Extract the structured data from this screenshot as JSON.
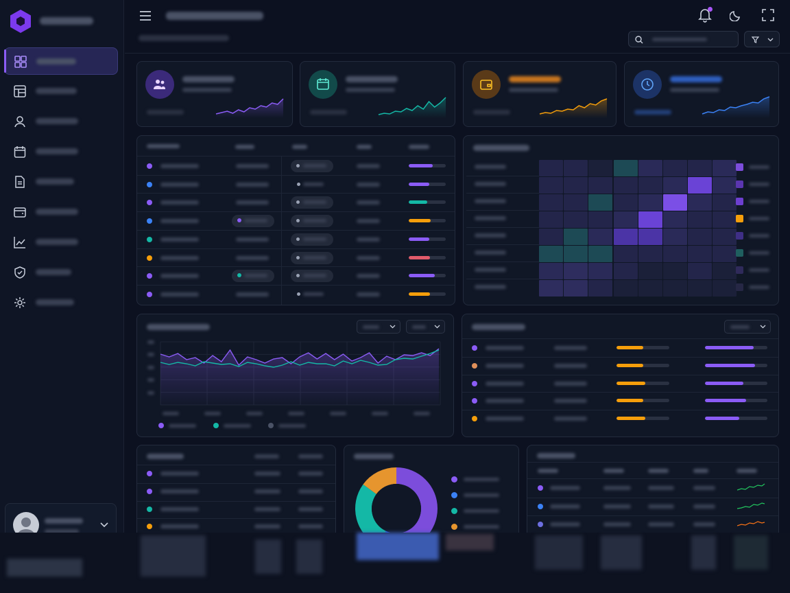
{
  "theme": {
    "accent": "#8b5cf6",
    "teal": "#14b8a6",
    "orange": "#f59e0b",
    "blue": "#3b82f6",
    "red": "#e05a6a",
    "background": "#0c1120",
    "panel": "#101726"
  },
  "sidebar": {
    "logo_icon": "hexagon-logo-icon",
    "items": [
      {
        "icon": "dashboard-grid-icon",
        "active": true
      },
      {
        "icon": "table-icon",
        "active": false
      },
      {
        "icon": "user-icon",
        "active": false
      },
      {
        "icon": "calendar-icon",
        "active": false
      },
      {
        "icon": "document-icon",
        "active": false
      },
      {
        "icon": "wallet-icon",
        "active": false
      },
      {
        "icon": "chart-line-icon",
        "active": false
      },
      {
        "icon": "shield-check-icon",
        "active": false
      },
      {
        "icon": "gear-icon",
        "active": false
      }
    ],
    "user_card": {
      "avatar_icon": "avatar-icon",
      "expand_icon": "chevron-down-icon"
    }
  },
  "header": {
    "menu_icon": "hamburger-menu-icon",
    "notification_icon": "bell-icon",
    "theme_icon": "moon-icon",
    "fullscreen_icon": "fullscreen-icon",
    "search_icon": "search-icon",
    "filter_icon": "filter-icon"
  },
  "stat_cards": [
    {
      "icon": "users-icon",
      "color": "#8b5cf6"
    },
    {
      "icon": "calendar-icon",
      "color": "#14b8a6"
    },
    {
      "icon": "wallet-icon",
      "color": "#f59e0b"
    },
    {
      "icon": "clock-icon",
      "color": "#3b82f6"
    }
  ],
  "sparklines": [
    [
      34,
      32,
      30,
      33,
      28,
      31,
      25,
      27,
      22,
      24,
      18,
      20,
      12
    ],
    [
      35,
      33,
      34,
      30,
      31,
      26,
      29,
      22,
      27,
      16,
      24,
      18,
      10
    ],
    [
      34,
      32,
      33,
      29,
      30,
      27,
      28,
      22,
      25,
      19,
      21,
      15,
      12
    ],
    [
      34,
      31,
      32,
      28,
      29,
      24,
      25,
      22,
      20,
      17,
      18,
      12,
      9
    ]
  ],
  "table_main": {
    "dot_colors": [
      "#8b5cf6",
      "#3b82f6",
      "#8b5cf6",
      "#3b82f6",
      "#14b8a6",
      "#f59e0b",
      "#8b5cf6",
      "#8b5cf6"
    ],
    "bars": [
      {
        "pct": 0.65,
        "color": "#8b5cf6"
      },
      {
        "pct": 0.55,
        "color": "#8b5cf6"
      },
      {
        "pct": 0.5,
        "color": "#14b8a6"
      },
      {
        "pct": 0.6,
        "color": "#f59e0b"
      },
      {
        "pct": 0.55,
        "color": "#8b5cf6"
      },
      {
        "pct": 0.58,
        "color": "#e05a6a"
      },
      {
        "pct": 0.7,
        "color": "#8b5cf6"
      },
      {
        "pct": 0.58,
        "color": "#f59e0b"
      }
    ]
  },
  "heatmap": {
    "values": [
      [
        2,
        2,
        1,
        5,
        3,
        2,
        2,
        3
      ],
      [
        2,
        2,
        2,
        2,
        2,
        3,
        7,
        3
      ],
      [
        2,
        2,
        5,
        2,
        3,
        8,
        3,
        2
      ],
      [
        2,
        2,
        2,
        3,
        7,
        3,
        2,
        2
      ],
      [
        2,
        5,
        3,
        6,
        6,
        3,
        2,
        2
      ],
      [
        5,
        5,
        5,
        2,
        2,
        2,
        2,
        2
      ],
      [
        3,
        4,
        3,
        2,
        1,
        1,
        2,
        1
      ],
      [
        4,
        4,
        2,
        1,
        1,
        1,
        1,
        1
      ]
    ],
    "legend_colors": [
      "#7c4ddb",
      "#5b36b0",
      "#6d3fd0",
      "#f59e0b",
      "#3f2f86",
      "#1f5f5f",
      "#2f2a5a",
      "#262745"
    ]
  },
  "line_chart": {
    "series": [
      {
        "color": "#8b5cf6",
        "values": [
          58,
          62,
          57,
          66,
          63,
          71,
          60,
          69,
          52,
          74,
          62,
          66,
          71,
          65,
          63,
          72,
          62,
          56,
          65,
          57,
          66,
          58,
          68,
          63,
          56,
          71,
          61,
          66,
          59,
          60,
          56,
          60,
          50
        ]
      },
      {
        "color": "#14b8a6",
        "values": [
          70,
          73,
          70,
          72,
          75,
          69,
          71,
          73,
          72,
          76,
          70,
          72,
          75,
          77,
          74,
          69,
          74,
          70,
          72,
          72,
          75,
          68,
          72,
          67,
          70,
          74,
          73,
          66,
          64,
          65,
          61,
          57,
          52
        ]
      }
    ],
    "legend_colors": [
      "#8b5cf6",
      "#14b8a6",
      "#4a5266"
    ]
  },
  "list_right": {
    "dot_colors": [
      "#8b5cf6",
      "#e0905a",
      "#8b5cf6",
      "#8b5cf6",
      "#f59e0b"
    ],
    "orange_bars": [
      0.5,
      0.5,
      0.55,
      0.5,
      0.55
    ],
    "purple_bars": [
      0.78,
      0.8,
      0.62,
      0.66,
      0.55
    ]
  },
  "table_small": {
    "dot_colors": [
      "#8b5cf6",
      "#8b5cf6",
      "#14b8a6",
      "#f59e0b"
    ]
  },
  "donut": {
    "segments": [
      {
        "value": 50,
        "color": "#7c4ddb"
      },
      {
        "value": 7,
        "color": "#2563eb"
      },
      {
        "value": 28,
        "color": "#14b8a6"
      },
      {
        "value": 15,
        "color": "#e6952e"
      }
    ],
    "legend_colors": [
      "#8b5cf6",
      "#3b82f6",
      "#14b8a6",
      "#e6952e"
    ]
  },
  "table_trend": {
    "dot_colors": [
      "#8b5cf6",
      "#3b82f6",
      "#6d6fe0"
    ],
    "trend_colors": [
      "#22c55e",
      "#22c55e",
      "#f97316"
    ]
  }
}
